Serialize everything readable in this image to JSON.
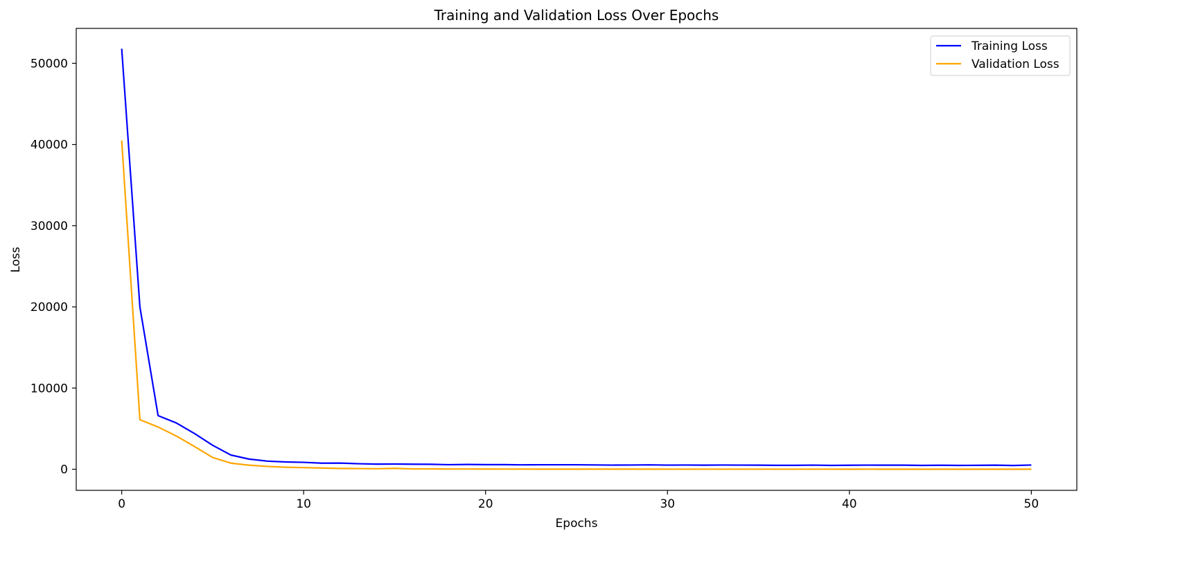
{
  "chart_data": {
    "type": "line",
    "title": "Training and Validation Loss Over Epochs",
    "xlabel": "Epochs",
    "ylabel": "Loss",
    "xlim": [
      -2.5,
      52.5
    ],
    "ylim": [
      -2600,
      54300
    ],
    "xticks": [
      0,
      10,
      20,
      30,
      40,
      50
    ],
    "yticks": [
      0,
      10000,
      20000,
      30000,
      40000,
      50000
    ],
    "grid": false,
    "legend_position": "top-right",
    "x": [
      0,
      1,
      2,
      3,
      4,
      5,
      6,
      7,
      8,
      9,
      10,
      11,
      12,
      13,
      14,
      15,
      16,
      17,
      18,
      19,
      20,
      21,
      22,
      23,
      24,
      25,
      26,
      27,
      28,
      29,
      30,
      31,
      32,
      33,
      34,
      35,
      36,
      37,
      38,
      39,
      40,
      41,
      42,
      43,
      44,
      45,
      46,
      47,
      48,
      49,
      50
    ],
    "series": [
      {
        "name": "Training Loss",
        "color": "#0000ff",
        "values": [
          51800,
          20000,
          6600,
          5700,
          4400,
          2950,
          1750,
          1250,
          1000,
          900,
          850,
          750,
          760,
          680,
          630,
          640,
          620,
          610,
          560,
          590,
          570,
          570,
          540,
          550,
          550,
          550,
          530,
          510,
          520,
          540,
          510,
          520,
          500,
          520,
          510,
          500,
          480,
          480,
          510,
          470,
          490,
          510,
          500,
          500,
          470,
          490,
          470,
          480,
          500,
          460,
          520
        ]
      },
      {
        "name": "Validation Loss",
        "color": "#ffa500",
        "values": [
          40500,
          6100,
          5200,
          4100,
          2800,
          1450,
          750,
          500,
          350,
          250,
          200,
          150,
          100,
          80,
          60,
          110,
          40,
          40,
          30,
          30,
          25,
          20,
          20,
          15,
          15,
          15,
          12,
          10,
          10,
          10,
          8,
          8,
          8,
          8,
          8,
          5,
          5,
          5,
          5,
          5,
          3,
          5,
          3,
          3,
          3,
          3,
          3,
          3,
          3,
          3,
          3
        ]
      }
    ]
  }
}
